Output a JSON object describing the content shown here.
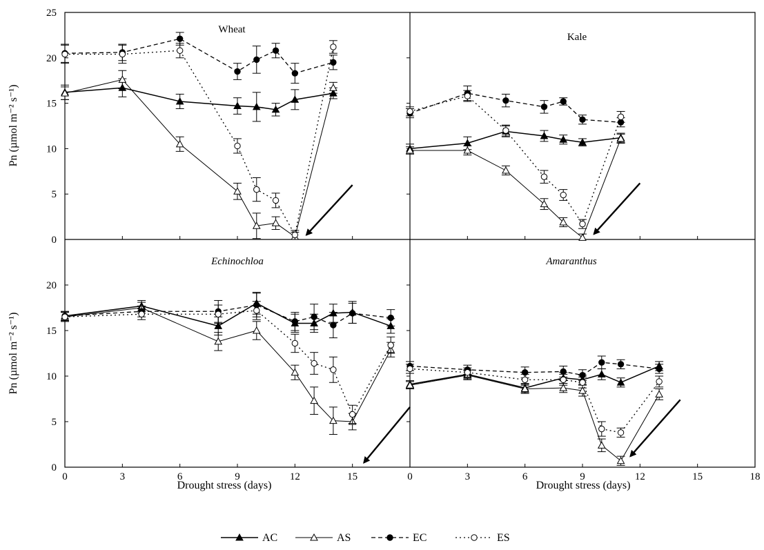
{
  "figure": {
    "ylabel": "Pn (µmol m⁻² s⁻¹)",
    "xlabel": "Drought stress (days)",
    "legend": [
      {
        "key": "AC",
        "label": "AC",
        "line": "solid",
        "marker": "filled-triangle"
      },
      {
        "key": "AS",
        "label": "AS",
        "line": "solid",
        "marker": "open-triangle"
      },
      {
        "key": "EC",
        "label": "EC",
        "line": "dashed",
        "marker": "filled-circle"
      },
      {
        "key": "ES",
        "label": "ES",
        "line": "dotted",
        "marker": "open-circle"
      }
    ],
    "x_ticks_left": [
      "0",
      "3",
      "6",
      "9",
      "12",
      "15"
    ],
    "x_ticks_right": [
      "0",
      "3",
      "6",
      "9",
      "12",
      "15",
      "18"
    ],
    "y_ticks_top": [
      "0",
      "5",
      "10",
      "15",
      "20",
      "25"
    ],
    "y_ticks_bottom": [
      "0",
      "5",
      "10",
      "15",
      "20"
    ]
  },
  "chart_data": [
    {
      "type": "line",
      "title": "Wheat",
      "title_italic": false,
      "xlim": [
        0,
        18
      ],
      "ylim": [
        0,
        25
      ],
      "series": [
        {
          "name": "AC",
          "x": [
            0,
            3,
            6,
            9,
            10,
            11,
            12,
            14
          ],
          "y": [
            16.2,
            16.7,
            15.2,
            14.7,
            14.6,
            14.3,
            15.4,
            16.1
          ],
          "err": [
            0.8,
            1.0,
            0.8,
            0.9,
            1.6,
            0.7,
            1.1,
            0.6
          ]
        },
        {
          "name": "AS",
          "x": [
            0,
            3,
            6,
            9,
            10,
            11,
            12,
            14
          ],
          "y": [
            16.1,
            17.6,
            10.5,
            5.3,
            1.5,
            1.8,
            0.3,
            16.7
          ],
          "err": [
            0.7,
            1.0,
            0.8,
            0.9,
            1.4,
            0.7,
            0.5,
            0.6
          ]
        },
        {
          "name": "EC",
          "x": [
            0,
            3,
            6,
            9,
            10,
            11,
            12,
            14
          ],
          "y": [
            20.5,
            20.6,
            22.1,
            18.5,
            19.8,
            20.8,
            18.3,
            19.5
          ],
          "err": [
            1.0,
            0.9,
            0.7,
            0.9,
            1.5,
            0.8,
            1.1,
            0.8
          ]
        },
        {
          "name": "ES",
          "x": [
            0,
            3,
            6,
            9,
            10,
            11,
            12,
            14
          ],
          "y": [
            20.4,
            20.4,
            20.8,
            10.3,
            5.5,
            4.3,
            0.5,
            21.2
          ],
          "err": [
            1.0,
            1.0,
            0.8,
            0.8,
            1.3,
            0.8,
            0.5,
            0.7
          ]
        }
      ],
      "arrow": {
        "from": [
          15.0,
          6.0
        ],
        "to": [
          12.6,
          0.5
        ]
      }
    },
    {
      "type": "line",
      "title": "Kale",
      "title_italic": false,
      "xlim": [
        0,
        18
      ],
      "ylim": [
        0,
        25
      ],
      "series": [
        {
          "name": "AC",
          "x": [
            0,
            3,
            5,
            7,
            8,
            9,
            11
          ],
          "y": [
            10.0,
            10.6,
            11.9,
            11.4,
            11.0,
            10.7,
            11.2
          ],
          "err": [
            0.5,
            0.7,
            0.6,
            0.6,
            0.5,
            0.4,
            0.5
          ]
        },
        {
          "name": "AS",
          "x": [
            0,
            3,
            5,
            7,
            8,
            9,
            11
          ],
          "y": [
            9.8,
            9.8,
            7.6,
            3.9,
            1.9,
            0.2,
            11.1
          ],
          "err": [
            0.4,
            0.5,
            0.5,
            0.6,
            0.5,
            0.4,
            0.5
          ]
        },
        {
          "name": "EC",
          "x": [
            0,
            3,
            5,
            7,
            8,
            9,
            11
          ],
          "y": [
            13.9,
            16.1,
            15.3,
            14.6,
            15.2,
            13.2,
            12.9
          ],
          "err": [
            0.5,
            0.8,
            0.7,
            0.7,
            0.4,
            0.5,
            0.5
          ]
        },
        {
          "name": "ES",
          "x": [
            0,
            3,
            5,
            7,
            8,
            9,
            11
          ],
          "y": [
            14.1,
            15.8,
            12.0,
            6.9,
            4.9,
            1.7,
            13.5
          ],
          "err": [
            0.5,
            0.6,
            0.6,
            0.7,
            0.6,
            0.5,
            0.6
          ]
        }
      ],
      "arrow": {
        "from": [
          12.0,
          6.2
        ],
        "to": [
          9.6,
          0.6
        ]
      }
    },
    {
      "type": "line",
      "title": "Echinochloa",
      "title_italic": true,
      "xlim": [
        0,
        18
      ],
      "ylim": [
        0,
        25
      ],
      "series": [
        {
          "name": "AC",
          "x": [
            0,
            4,
            8,
            10,
            12,
            13,
            14,
            15,
            17
          ],
          "y": [
            16.6,
            17.7,
            15.5,
            18.0,
            15.8,
            15.8,
            16.9,
            17.0,
            15.5
          ],
          "err": [
            0.5,
            0.6,
            1.0,
            1.2,
            1.0,
            1.0,
            1.0,
            1.2,
            0.8
          ]
        },
        {
          "name": "AS",
          "x": [
            0,
            4,
            8,
            10,
            12,
            13,
            14,
            15,
            17
          ],
          "y": [
            16.5,
            17.5,
            13.8,
            15.0,
            10.4,
            7.3,
            5.1,
            5.0,
            12.9
          ],
          "err": [
            0.5,
            0.6,
            1.0,
            1.0,
            0.8,
            1.5,
            1.5,
            0.9,
            0.8
          ]
        },
        {
          "name": "EC",
          "x": [
            0,
            4,
            8,
            10,
            12,
            13,
            14,
            15,
            17
          ],
          "y": [
            16.6,
            17.1,
            17.1,
            17.8,
            16.0,
            16.5,
            15.6,
            16.9,
            16.4
          ],
          "err": [
            0.5,
            0.6,
            1.2,
            1.3,
            1.0,
            1.4,
            1.4,
            1.1,
            0.9
          ]
        },
        {
          "name": "ES",
          "x": [
            0,
            4,
            8,
            10,
            12,
            13,
            14,
            15,
            17
          ],
          "y": [
            16.5,
            16.8,
            16.8,
            17.2,
            13.6,
            11.4,
            10.7,
            5.8,
            13.4
          ],
          "err": [
            0.5,
            0.6,
            1.0,
            1.0,
            1.0,
            1.2,
            1.4,
            1.0,
            0.9
          ]
        }
      ],
      "arrow": {
        "from": [
          18.0,
          6.6
        ],
        "to": [
          15.6,
          0.5
        ]
      }
    },
    {
      "type": "line",
      "title": "Amaranthus",
      "title_italic": true,
      "xlim": [
        0,
        18
      ],
      "ylim": [
        0,
        25
      ],
      "series": [
        {
          "name": "AC",
          "x": [
            0,
            3,
            6,
            8,
            9,
            10,
            11,
            13
          ],
          "y": [
            9.1,
            10.2,
            8.7,
            9.8,
            9.6,
            10.2,
            9.3,
            11.1
          ],
          "err": [
            0.4,
            0.5,
            0.5,
            0.6,
            0.5,
            0.6,
            0.5,
            0.5
          ]
        },
        {
          "name": "AS",
          "x": [
            0,
            3,
            6,
            8,
            9,
            10,
            11,
            13
          ],
          "y": [
            9.0,
            10.1,
            8.6,
            8.7,
            8.4,
            2.4,
            0.7,
            8.0
          ],
          "err": [
            0.4,
            0.5,
            0.5,
            0.5,
            0.6,
            0.7,
            0.5,
            0.6
          ]
        },
        {
          "name": "EC",
          "x": [
            0,
            3,
            6,
            8,
            9,
            10,
            11,
            13
          ],
          "y": [
            11.1,
            10.7,
            10.4,
            10.5,
            10.1,
            11.5,
            11.3,
            10.8
          ],
          "err": [
            0.5,
            0.5,
            0.6,
            0.6,
            0.6,
            0.7,
            0.5,
            0.5
          ]
        },
        {
          "name": "ES",
          "x": [
            0,
            3,
            6,
            8,
            9,
            10,
            11,
            13
          ],
          "y": [
            10.8,
            10.4,
            9.6,
            9.6,
            9.3,
            4.2,
            3.8,
            9.4
          ],
          "err": [
            0.5,
            0.5,
            0.6,
            0.6,
            0.6,
            0.8,
            0.5,
            0.6
          ]
        }
      ],
      "arrow": {
        "from": [
          14.1,
          7.4
        ],
        "to": [
          11.5,
          1.2
        ]
      }
    }
  ]
}
